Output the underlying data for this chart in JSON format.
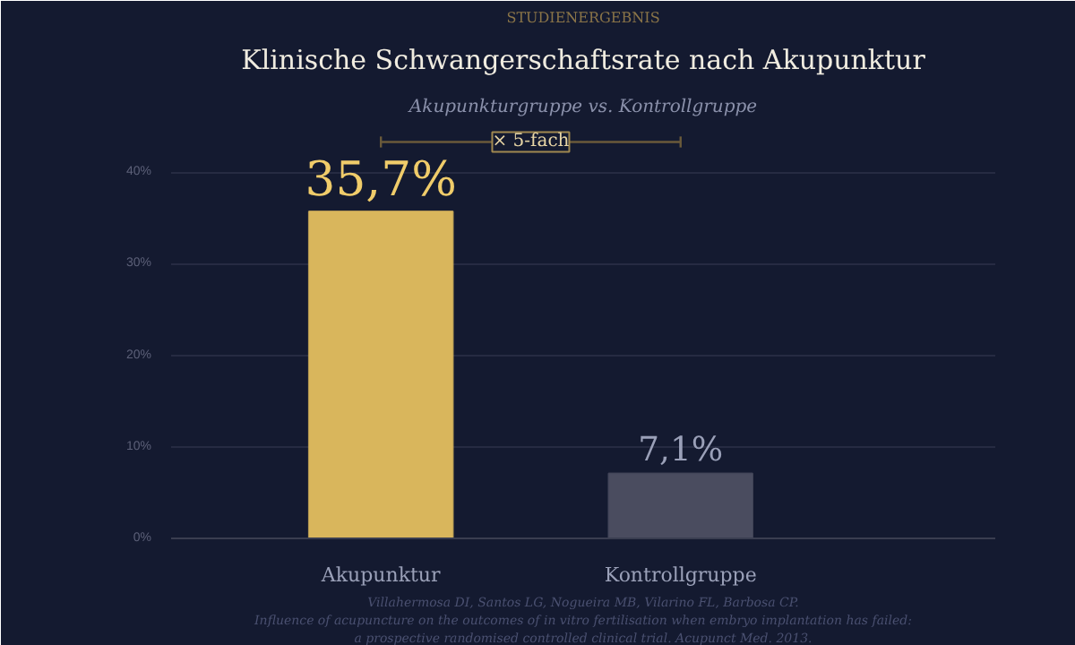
{
  "chart_data": {
    "type": "bar",
    "title": "Klinische Schwangerschaftsrate nach Akupunktur",
    "subtitle": "Akupunkturgruppe vs. Kontrollgruppe",
    "categories": [
      "Akupunktur",
      "Kontrollgruppe"
    ],
    "values": [
      35.7,
      7.1
    ],
    "colors": [
      "#d9b65c",
      "#4a4c5f"
    ],
    "value_labels": [
      "35,7%",
      "7,1%"
    ],
    "ylim": [
      0,
      45
    ],
    "yticks": [
      {
        "value": 0,
        "label": "0%"
      },
      {
        "value": 10,
        "label": "10%"
      },
      {
        "value": 20,
        "label": "20%"
      },
      {
        "value": 30,
        "label": "30%"
      },
      {
        "value": 40,
        "label": "40%"
      }
    ],
    "grid": "y",
    "annotations": [
      "STUDIENERGEBNIS",
      "× 5-fach",
      "Villahermosa DI, Santos LG, Nogueira MB, Vilarino FL, Barbosa CP.",
      "Influence of acupuncture on the outcomes of in vitro fertilisation when embryo implantation has failed:",
      "a prospective randomised controlled clinical trial. Acupunct Med. 2013."
    ]
  }
}
